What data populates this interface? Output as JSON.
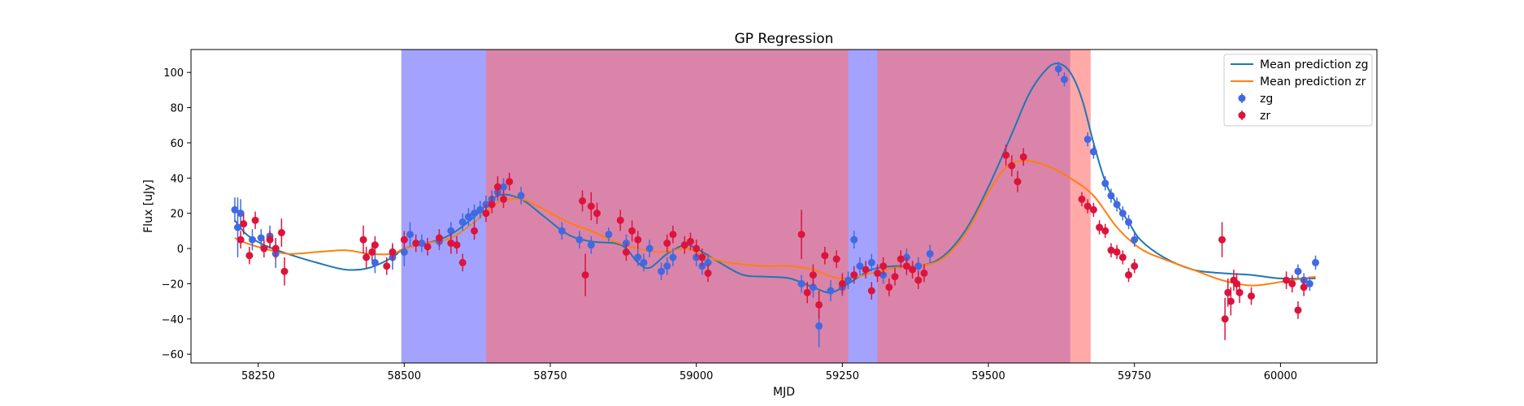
{
  "chart_data": {
    "type": "scatter",
    "title": "GP Regression",
    "xlabel": "MJD",
    "ylabel": "Flux [uJy]",
    "xlim": [
      58135,
      60165
    ],
    "ylim": [
      -65,
      113
    ],
    "xticks": [
      58250,
      58500,
      58750,
      59000,
      59250,
      59500,
      59750,
      60000
    ],
    "yticks": [
      -60,
      -40,
      -20,
      0,
      20,
      40,
      60,
      80,
      100
    ],
    "grid": false,
    "legend_position": "top-right",
    "colors": {
      "mean_zg": "#1f77b4",
      "mean_zr": "#ff7f0e",
      "points_zg": "#4169e1",
      "points_zr": "#dc143c",
      "band_zg": "#6666ff",
      "band_zr": "#ff6f6f"
    },
    "shaded_regions": [
      {
        "series": "zg",
        "x0": 58495,
        "x1": 59640
      },
      {
        "series": "zr",
        "x0": 58640,
        "x1": 59260
      },
      {
        "series": "zr",
        "x0": 59310,
        "x1": 59675
      }
    ],
    "legend": [
      {
        "label": "Mean prediction zg",
        "kind": "line",
        "color": "#1f77b4"
      },
      {
        "label": "Mean prediction zr",
        "kind": "line",
        "color": "#ff7f0e"
      },
      {
        "label": "zg",
        "kind": "point",
        "color": "#4169e1"
      },
      {
        "label": "zr",
        "kind": "point",
        "color": "#dc143c"
      }
    ],
    "series": [
      {
        "name": "Mean prediction zg",
        "type": "line",
        "color": "#1f77b4",
        "x": [
          58210,
          58230,
          58260,
          58300,
          58350,
          58400,
          58440,
          58480,
          58500,
          58540,
          58580,
          58620,
          58660,
          58700,
          58740,
          58780,
          58820,
          58860,
          58880,
          58900,
          58920,
          58950,
          58980,
          59000,
          59040,
          59080,
          59120,
          59160,
          59200,
          59230,
          59260,
          59300,
          59340,
          59380,
          59420,
          59460,
          59500,
          59540,
          59570,
          59600,
          59620,
          59640,
          59660,
          59680,
          59700,
          59720,
          59740,
          59760,
          59800,
          59850,
          59900,
          59950,
          60000,
          60060
        ],
        "y": [
          16,
          8,
          2,
          -3,
          -8,
          -12,
          -11,
          -5,
          0,
          3,
          8,
          18,
          30,
          28,
          18,
          8,
          4,
          3,
          0,
          -8,
          -11,
          -3,
          2,
          0,
          -8,
          -15,
          -16,
          -17,
          -22,
          -25,
          -20,
          -12,
          -10,
          -10,
          -5,
          10,
          35,
          65,
          88,
          102,
          105,
          100,
          85,
          60,
          38,
          25,
          15,
          5,
          -5,
          -12,
          -14,
          -15,
          -17,
          -17
        ]
      },
      {
        "name": "Mean prediction zr",
        "type": "line",
        "color": "#ff7f0e",
        "x": [
          58210,
          58230,
          58260,
          58300,
          58350,
          58400,
          58440,
          58480,
          58500,
          58540,
          58580,
          58620,
          58660,
          58700,
          58740,
          58780,
          58820,
          58860,
          58900,
          58940,
          58980,
          59000,
          59040,
          59080,
          59120,
          59160,
          59200,
          59230,
          59260,
          59300,
          59340,
          59380,
          59420,
          59460,
          59500,
          59530,
          59560,
          59600,
          59640,
          59680,
          59720,
          59760,
          59800,
          59850,
          59900,
          59950,
          60000,
          60060
        ],
        "y": [
          6,
          3,
          0,
          -3,
          -2,
          -1,
          -3,
          -3,
          0,
          3,
          6,
          15,
          26,
          28,
          22,
          15,
          10,
          4,
          0,
          -2,
          0,
          -2,
          -7,
          -9,
          -10,
          -10,
          -12,
          -16,
          -17,
          -14,
          -11,
          -10,
          -6,
          8,
          32,
          46,
          50,
          47,
          40,
          30,
          12,
          0,
          -6,
          -12,
          -18,
          -21,
          -19,
          -16
        ]
      },
      {
        "name": "zg",
        "type": "scatter",
        "color": "#4169e1",
        "x": [
          58210,
          58215,
          58220,
          58240,
          58255,
          58270,
          58280,
          58450,
          58480,
          58500,
          58510,
          58530,
          58560,
          58580,
          58600,
          58610,
          58620,
          58630,
          58640,
          58650,
          58660,
          58670,
          58700,
          58770,
          58800,
          58820,
          58850,
          58880,
          58900,
          58910,
          58920,
          58940,
          58950,
          58960,
          59000,
          59010,
          59020,
          59180,
          59200,
          59210,
          59230,
          59250,
          59260,
          59270,
          59280,
          59300,
          59320,
          59360,
          59380,
          59400,
          59620,
          59630,
          59670,
          59680,
          59700,
          59710,
          59720,
          59730,
          59740,
          59750,
          60030,
          60040,
          60050,
          60060
        ],
        "y": [
          22,
          12,
          20,
          5,
          6,
          7,
          -3,
          -8,
          -5,
          -2,
          8,
          3,
          4,
          10,
          15,
          18,
          20,
          22,
          25,
          28,
          32,
          35,
          30,
          10,
          5,
          2,
          8,
          3,
          -5,
          -8,
          0,
          -13,
          -10,
          -5,
          -5,
          -10,
          -8,
          -20,
          -22,
          -44,
          -24,
          -22,
          -18,
          5,
          -10,
          -8,
          -15,
          -5,
          -10,
          -3,
          102,
          96,
          62,
          55,
          37,
          30,
          25,
          20,
          15,
          5,
          -13,
          -18,
          -20,
          -8
        ],
        "yerr": [
          7,
          17,
          8,
          6,
          5,
          6,
          8,
          6,
          7,
          8,
          7,
          5,
          5,
          5,
          5,
          5,
          5,
          5,
          5,
          5,
          5,
          5,
          5,
          5,
          5,
          5,
          4,
          5,
          5,
          5,
          5,
          5,
          5,
          5,
          5,
          5,
          5,
          5,
          6,
          12,
          6,
          5,
          5,
          5,
          5,
          5,
          5,
          5,
          5,
          5,
          4,
          4,
          4,
          4,
          4,
          4,
          4,
          4,
          4,
          4,
          4,
          4,
          4,
          4
        ]
      },
      {
        "name": "zr",
        "type": "scatter",
        "color": "#dc143c",
        "x": [
          58220,
          58225,
          58235,
          58245,
          58260,
          58270,
          58280,
          58290,
          58295,
          58430,
          58435,
          58445,
          58450,
          58470,
          58480,
          58500,
          58520,
          58540,
          58560,
          58580,
          58590,
          58600,
          58620,
          58640,
          58650,
          58660,
          58670,
          58680,
          58805,
          58810,
          58820,
          58830,
          58870,
          58880,
          58890,
          58900,
          58950,
          58960,
          58980,
          58990,
          59000,
          59010,
          59020,
          59180,
          59190,
          59200,
          59210,
          59220,
          59240,
          59250,
          59270,
          59290,
          59300,
          59310,
          59320,
          59330,
          59340,
          59350,
          59360,
          59370,
          59380,
          59390,
          59530,
          59540,
          59550,
          59560,
          59660,
          59670,
          59680,
          59690,
          59700,
          59710,
          59720,
          59730,
          59740,
          59750,
          59900,
          59905,
          59910,
          59915,
          59920,
          59925,
          59930,
          59950,
          60010,
          60020,
          60030,
          60040
        ],
        "y": [
          5,
          14,
          -4,
          16,
          0,
          5,
          0,
          9,
          -13,
          5,
          -5,
          -2,
          2,
          -10,
          -2,
          5,
          3,
          1,
          6,
          3,
          2,
          -8,
          10,
          20,
          25,
          35,
          28,
          38,
          27,
          -15,
          24,
          20,
          16,
          -2,
          10,
          5,
          3,
          8,
          2,
          4,
          0,
          -5,
          -14,
          8,
          -25,
          -15,
          -32,
          -4,
          -6,
          -20,
          -15,
          -12,
          -24,
          -14,
          -10,
          -22,
          -16,
          -6,
          -10,
          -12,
          -18,
          -14,
          53,
          47,
          38,
          52,
          28,
          24,
          22,
          12,
          10,
          -1,
          -2,
          -5,
          -15,
          -10,
          5,
          -40,
          -25,
          -30,
          -18,
          -20,
          -25,
          -27,
          -18,
          -20,
          -35,
          -22
        ],
        "yerr": [
          5,
          6,
          5,
          5,
          5,
          5,
          6,
          8,
          8,
          8,
          6,
          5,
          5,
          5,
          5,
          5,
          5,
          5,
          5,
          6,
          5,
          5,
          5,
          5,
          5,
          6,
          5,
          5,
          6,
          12,
          8,
          6,
          6,
          5,
          6,
          5,
          5,
          5,
          5,
          5,
          5,
          5,
          5,
          14,
          6,
          6,
          8,
          5,
          5,
          6,
          5,
          5,
          5,
          5,
          5,
          5,
          5,
          5,
          5,
          5,
          5,
          5,
          6,
          6,
          6,
          5,
          4,
          4,
          4,
          4,
          4,
          4,
          4,
          4,
          4,
          4,
          10,
          12,
          8,
          8,
          6,
          6,
          6,
          5,
          5,
          5,
          5,
          5
        ]
      }
    ]
  }
}
